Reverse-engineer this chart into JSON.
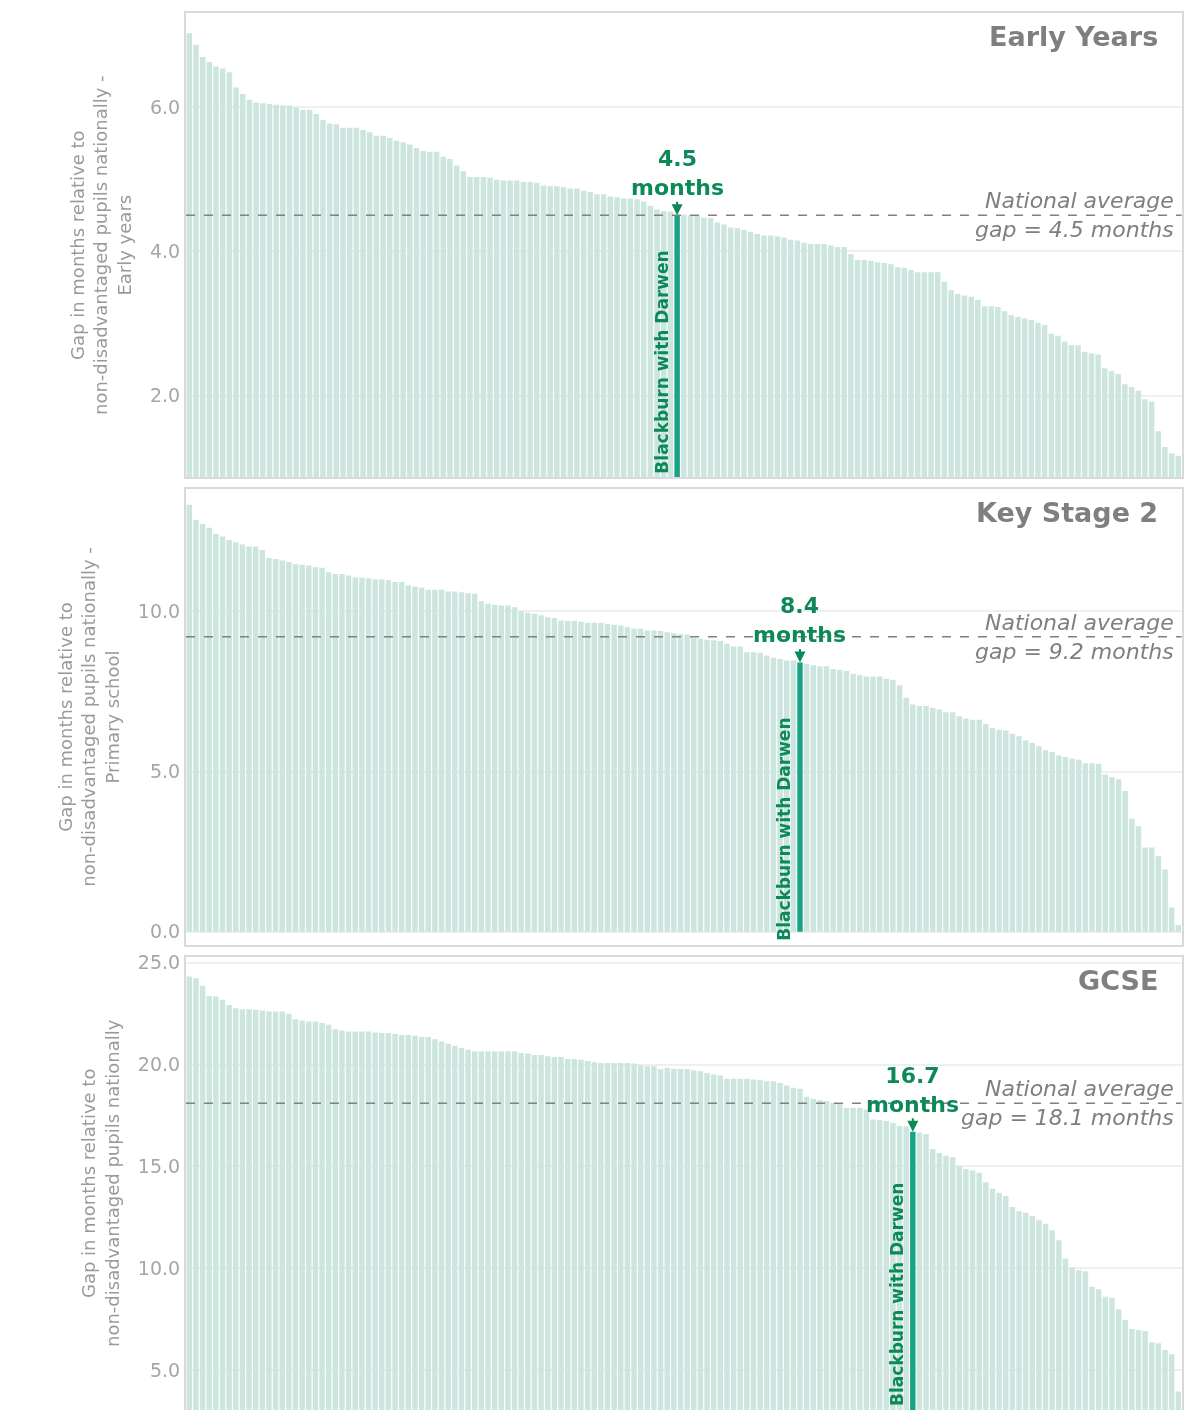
{
  "chart_data": [
    {
      "type": "bar",
      "title": "Early Years",
      "ylabel": "Gap in months relative to\nnon-disadvantaged pupils nationally -\nEarly years",
      "categories": [
        null,
        null,
        null,
        null,
        null,
        null,
        null,
        null,
        null,
        null,
        null,
        null,
        null,
        null,
        null,
        null,
        null,
        null,
        null,
        null,
        null,
        null,
        null,
        null,
        null,
        null,
        null,
        null,
        null,
        null,
        null,
        null,
        null,
        null,
        null,
        null,
        null,
        null,
        null,
        null,
        null,
        null,
        null,
        null,
        null,
        null,
        null,
        null,
        null,
        null,
        null,
        null,
        null,
        null,
        null,
        null,
        null,
        null,
        null,
        null,
        null,
        null,
        null,
        null,
        null,
        null,
        null,
        null,
        null,
        null,
        null,
        null,
        null,
        null,
        null,
        null,
        null,
        null,
        null,
        null,
        null,
        null,
        null,
        null,
        null,
        null,
        null,
        null,
        null,
        null,
        null,
        null,
        null,
        null,
        null,
        null,
        null,
        null,
        null,
        null,
        null,
        null,
        null,
        null,
        null,
        null,
        null,
        null,
        null,
        null,
        null,
        null,
        null,
        null,
        null,
        null,
        null,
        null,
        null,
        null,
        null,
        null,
        null,
        null,
        null,
        null,
        null,
        null,
        null,
        null,
        null,
        null,
        null,
        null,
        null,
        null,
        null,
        null,
        null,
        null,
        null,
        null,
        null,
        null,
        null,
        null,
        null,
        null,
        null
      ],
      "values": [
        7.02,
        6.86,
        6.69,
        6.62,
        6.56,
        6.53,
        6.48,
        6.27,
        6.18,
        6.1,
        6.06,
        6.05,
        6.04,
        6.03,
        6.02,
        6.02,
        5.99,
        5.96,
        5.96,
        5.9,
        5.82,
        5.77,
        5.76,
        5.71,
        5.71,
        5.71,
        5.68,
        5.65,
        5.6,
        5.6,
        5.57,
        5.53,
        5.51,
        5.48,
        5.43,
        5.39,
        5.38,
        5.38,
        5.31,
        5.28,
        5.19,
        5.11,
        5.03,
        5.03,
        5.03,
        5.02,
        4.99,
        4.98,
        4.98,
        4.98,
        4.96,
        4.96,
        4.95,
        4.91,
        4.9,
        4.9,
        4.89,
        4.87,
        4.87,
        4.84,
        4.82,
        4.79,
        4.79,
        4.76,
        4.75,
        4.73,
        4.73,
        4.72,
        4.69,
        4.63,
        4.58,
        4.56,
        4.55,
        4.5,
        4.51,
        4.5,
        4.49,
        4.47,
        4.46,
        4.4,
        4.37,
        4.33,
        4.32,
        4.3,
        4.27,
        4.24,
        4.22,
        4.22,
        4.21,
        4.19,
        4.16,
        4.15,
        4.12,
        4.1,
        4.1,
        4.1,
        4.08,
        4.06,
        4.06,
        3.96,
        3.88,
        3.88,
        3.87,
        3.85,
        3.84,
        3.82,
        3.78,
        3.77,
        3.74,
        3.71,
        3.71,
        3.71,
        3.71,
        3.58,
        3.46,
        3.41,
        3.39,
        3.37,
        3.33,
        3.24,
        3.24,
        3.23,
        3.17,
        3.12,
        3.09,
        3.07,
        3.05,
        3.01,
        2.98,
        2.86,
        2.83,
        2.75,
        2.7,
        2.7,
        2.61,
        2.59,
        2.57,
        2.38,
        2.34,
        2.3,
        2.16,
        2.12,
        2.07,
        1.95,
        1.92,
        1.51,
        1.29,
        1.2,
        1.17
      ],
      "colors": [
        "#cce5df",
        "#cce5df",
        "#cce5df",
        "#cce5df",
        "#cce5df",
        "#cce5df",
        "#cce5df",
        "#cce5df",
        "#cce5df",
        "#cce5df",
        "#cce5df",
        "#cce5df",
        "#cce5df",
        "#cce5df",
        "#cce5df",
        "#cce5df",
        "#cce5df",
        "#cce5df",
        "#cce5df",
        "#cce5df",
        "#cce5df",
        "#cce5df",
        "#cce5df",
        "#cce5df",
        "#cce5df",
        "#cce5df",
        "#cce5df",
        "#cce5df",
        "#cce5df",
        "#cce5df",
        "#cce5df",
        "#cce5df",
        "#cce5df",
        "#cce5df",
        "#cce5df",
        "#cce5df",
        "#cce5df",
        "#cce5df",
        "#cce5df",
        "#cce5df",
        "#cce5df",
        "#cce5df",
        "#cce5df",
        "#cce5df",
        "#cce5df",
        "#cce5df",
        "#cce5df",
        "#cce5df",
        "#cce5df",
        "#cce5df",
        "#cce5df",
        "#cce5df",
        "#cce5df",
        "#cce5df",
        "#cce5df",
        "#cce5df",
        "#cce5df",
        "#cce5df",
        "#cce5df",
        "#cce5df",
        "#cce5df",
        "#cce5df",
        "#cce5df",
        "#cce5df",
        "#cce5df",
        "#cce5df",
        "#cce5df",
        "#cce5df",
        "#cce5df",
        "#cce5df",
        "#cce5df",
        "#cce5df",
        "#cce5df",
        "#17a386",
        "#cce5df",
        "#cce5df",
        "#cce5df",
        "#cce5df",
        "#cce5df",
        "#cce5df",
        "#cce5df",
        "#cce5df",
        "#cce5df",
        "#cce5df",
        "#cce5df",
        "#cce5df",
        "#cce5df",
        "#cce5df",
        "#cce5df",
        "#cce5df",
        "#cce5df",
        "#cce5df",
        "#cce5df",
        "#cce5df",
        "#cce5df",
        "#cce5df",
        "#cce5df",
        "#cce5df",
        "#cce5df",
        "#cce5df",
        "#cce5df",
        "#cce5df",
        "#cce5df",
        "#cce5df",
        "#cce5df",
        "#cce5df",
        "#cce5df",
        "#cce5df",
        "#cce5df",
        "#cce5df",
        "#cce5df",
        "#cce5df",
        "#cce5df",
        "#cce5df",
        "#cce5df",
        "#cce5df",
        "#cce5df",
        "#cce5df",
        "#cce5df",
        "#cce5df",
        "#cce5df",
        "#cce5df",
        "#cce5df",
        "#cce5df",
        "#cce5df",
        "#cce5df",
        "#cce5df",
        "#cce5df",
        "#cce5df",
        "#cce5df",
        "#cce5df",
        "#cce5df",
        "#cce5df",
        "#cce5df",
        "#cce5df",
        "#cce5df",
        "#cce5df",
        "#cce5df",
        "#cce5df",
        "#cce5df",
        "#cce5df",
        "#cce5df",
        "#cce5df",
        "#cce5df",
        "#cce5df",
        "#cce5df",
        "#cce5df",
        "#cce5df",
        "#cce5df"
      ],
      "ylim": [
        0.87,
        7.3
      ],
      "yticks": [
        {
          "value": 2,
          "label": "2.0"
        },
        {
          "value": 4,
          "label": "4.0"
        },
        {
          "value": 6,
          "label": "6.0"
        }
      ],
      "grid": "y",
      "tick_labels": "y",
      "annotations": [
        {
          "text": "4.5\nmonths",
          "y": 4.5
        },
        "Blackburn with Darwen"
      ],
      "ref_lines": [
        {
          "axis": "y",
          "value": 4.5,
          "label": "National average\ngap = 4.5 months",
          "color": "#808080",
          "line_style": "dashed"
        }
      ]
    },
    {
      "type": "bar",
      "title": "Key Stage 2",
      "ylabel": "Gap in months relative to\nnon-disadvantaged pupils nationally -\nPrimary school",
      "categories": [
        null,
        null,
        null,
        null,
        null,
        null,
        null,
        null,
        null,
        null,
        null,
        null,
        null,
        null,
        null,
        null,
        null,
        null,
        null,
        null,
        null,
        null,
        null,
        null,
        null,
        null,
        null,
        null,
        null,
        null,
        null,
        null,
        null,
        null,
        null,
        null,
        null,
        null,
        null,
        null,
        null,
        null,
        null,
        null,
        null,
        null,
        null,
        null,
        null,
        null,
        null,
        null,
        null,
        null,
        null,
        null,
        null,
        null,
        null,
        null,
        null,
        null,
        null,
        null,
        null,
        null,
        null,
        null,
        null,
        null,
        null,
        null,
        null,
        null,
        null,
        null,
        null,
        null,
        null,
        null,
        null,
        null,
        null,
        null,
        null,
        null,
        null,
        null,
        null,
        null,
        null,
        null,
        null,
        null,
        null,
        null,
        null,
        null,
        null,
        null,
        null,
        null,
        null,
        null,
        null,
        null,
        null,
        null,
        null,
        null,
        null,
        null,
        null,
        null,
        null,
        null,
        null,
        null,
        null,
        null,
        null,
        null,
        null,
        null,
        null,
        null,
        null,
        null,
        null,
        null,
        null,
        null,
        null,
        null,
        null,
        null,
        null,
        null,
        null,
        null,
        null,
        null,
        null,
        null,
        null,
        null,
        null,
        null,
        null,
        null
      ],
      "values": [
        13.32,
        12.84,
        12.72,
        12.6,
        12.41,
        12.33,
        12.22,
        12.15,
        12.08,
        12.02,
        12.02,
        11.91,
        11.66,
        11.63,
        11.58,
        11.53,
        11.47,
        11.45,
        11.42,
        11.37,
        11.35,
        11.21,
        11.16,
        11.16,
        11.11,
        11.06,
        11.04,
        11.03,
        10.99,
        10.99,
        10.96,
        10.91,
        10.91,
        10.8,
        10.77,
        10.73,
        10.67,
        10.67,
        10.67,
        10.61,
        10.61,
        10.59,
        10.56,
        10.54,
        10.31,
        10.23,
        10.2,
        10.18,
        10.18,
        10.12,
        9.99,
        9.95,
        9.92,
        9.87,
        9.81,
        9.79,
        9.71,
        9.69,
        9.69,
        9.67,
        9.64,
        9.64,
        9.64,
        9.6,
        9.58,
        9.55,
        9.5,
        9.45,
        9.45,
        9.4,
        9.4,
        9.38,
        9.34,
        9.31,
        9.29,
        9.27,
        9.17,
        9.14,
        9.11,
        9.09,
        9.07,
        8.98,
        8.9,
        8.9,
        8.72,
        8.72,
        8.7,
        8.62,
        8.55,
        8.51,
        8.46,
        8.46,
        8.4,
        8.36,
        8.31,
        8.28,
        8.28,
        8.2,
        8.17,
        8.13,
        8.05,
        8.0,
        7.96,
        7.96,
        7.96,
        7.89,
        7.86,
        7.69,
        7.3,
        7.09,
        7.04,
        7.04,
        6.99,
        6.93,
        6.85,
        6.85,
        6.72,
        6.65,
        6.61,
        6.61,
        6.49,
        6.36,
        6.3,
        6.28,
        6.18,
        6.1,
        5.97,
        5.89,
        5.79,
        5.66,
        5.61,
        5.5,
        5.45,
        5.4,
        5.37,
        5.26,
        5.26,
        5.24,
        4.91,
        4.83,
        4.76,
        4.39,
        3.53,
        3.29,
        2.63,
        2.63,
        2.36,
        1.94,
        0.76,
        0.21
      ],
      "colors": [
        "#cce5df",
        "#cce5df",
        "#cce5df",
        "#cce5df",
        "#cce5df",
        "#cce5df",
        "#cce5df",
        "#cce5df",
        "#cce5df",
        "#cce5df",
        "#cce5df",
        "#cce5df",
        "#cce5df",
        "#cce5df",
        "#cce5df",
        "#cce5df",
        "#cce5df",
        "#cce5df",
        "#cce5df",
        "#cce5df",
        "#cce5df",
        "#cce5df",
        "#cce5df",
        "#cce5df",
        "#cce5df",
        "#cce5df",
        "#cce5df",
        "#cce5df",
        "#cce5df",
        "#cce5df",
        "#cce5df",
        "#cce5df",
        "#cce5df",
        "#cce5df",
        "#cce5df",
        "#cce5df",
        "#cce5df",
        "#cce5df",
        "#cce5df",
        "#cce5df",
        "#cce5df",
        "#cce5df",
        "#cce5df",
        "#cce5df",
        "#cce5df",
        "#cce5df",
        "#cce5df",
        "#cce5df",
        "#cce5df",
        "#cce5df",
        "#cce5df",
        "#cce5df",
        "#cce5df",
        "#cce5df",
        "#cce5df",
        "#cce5df",
        "#cce5df",
        "#cce5df",
        "#cce5df",
        "#cce5df",
        "#cce5df",
        "#cce5df",
        "#cce5df",
        "#cce5df",
        "#cce5df",
        "#cce5df",
        "#cce5df",
        "#cce5df",
        "#cce5df",
        "#cce5df",
        "#cce5df",
        "#cce5df",
        "#cce5df",
        "#cce5df",
        "#cce5df",
        "#cce5df",
        "#cce5df",
        "#cce5df",
        "#cce5df",
        "#cce5df",
        "#cce5df",
        "#cce5df",
        "#cce5df",
        "#cce5df",
        "#cce5df",
        "#cce5df",
        "#cce5df",
        "#cce5df",
        "#cce5df",
        "#cce5df",
        "#cce5df",
        "#cce5df",
        "#17a386",
        "#cce5df",
        "#cce5df",
        "#cce5df",
        "#cce5df",
        "#cce5df",
        "#cce5df",
        "#cce5df",
        "#cce5df",
        "#cce5df",
        "#cce5df",
        "#cce5df",
        "#cce5df",
        "#cce5df",
        "#cce5df",
        "#cce5df",
        "#cce5df",
        "#cce5df",
        "#cce5df",
        "#cce5df",
        "#cce5df",
        "#cce5df",
        "#cce5df",
        "#cce5df",
        "#cce5df",
        "#cce5df",
        "#cce5df",
        "#cce5df",
        "#cce5df",
        "#cce5df",
        "#cce5df",
        "#cce5df",
        "#cce5df",
        "#cce5df",
        "#cce5df",
        "#cce5df",
        "#cce5df",
        "#cce5df",
        "#cce5df",
        "#cce5df",
        "#cce5df",
        "#cce5df",
        "#cce5df",
        "#cce5df",
        "#cce5df",
        "#cce5df",
        "#cce5df",
        "#cce5df",
        "#cce5df",
        "#cce5df",
        "#cce5df",
        "#cce5df",
        "#cce5df",
        "#cce5df",
        "#cce5df",
        "#cce5df",
        "#cce5df",
        "#cce5df"
      ],
      "ylim": [
        -0.4,
        13.8
      ],
      "yticks": [
        {
          "value": 0,
          "label": "0.0"
        },
        {
          "value": 5,
          "label": "5.0"
        },
        {
          "value": 10,
          "label": "10.0"
        }
      ],
      "grid": "y",
      "tick_labels": "y",
      "annotations": [
        {
          "text": "8.4\nmonths",
          "y": 8.4
        },
        "Blackburn with Darwen"
      ],
      "ref_lines": [
        {
          "axis": "y",
          "value": 9.2,
          "label": "National average\ngap = 9.2 months",
          "color": "#808080",
          "line_style": "dashed"
        }
      ]
    },
    {
      "type": "bar",
      "title": "GCSE",
      "ylabel": "Gap in months relative to\nnon-disadvantaged pupils nationally",
      "categories": [
        null,
        null,
        null,
        null,
        null,
        null,
        null,
        null,
        null,
        null,
        null,
        null,
        null,
        null,
        null,
        null,
        null,
        null,
        null,
        null,
        null,
        null,
        null,
        null,
        null,
        null,
        null,
        null,
        null,
        null,
        null,
        null,
        null,
        null,
        null,
        null,
        null,
        null,
        null,
        null,
        null,
        null,
        null,
        null,
        null,
        null,
        null,
        null,
        null,
        null,
        null,
        null,
        null,
        null,
        null,
        null,
        null,
        null,
        null,
        null,
        null,
        null,
        null,
        null,
        null,
        null,
        null,
        null,
        null,
        null,
        null,
        null,
        null,
        null,
        null,
        null,
        null,
        null,
        null,
        null,
        null,
        null,
        null,
        null,
        null,
        null,
        null,
        null,
        null,
        null,
        null,
        null,
        null,
        null,
        null,
        null,
        null,
        null,
        null,
        null,
        null,
        null,
        null,
        null,
        null,
        null,
        null,
        null,
        null,
        null,
        null,
        null,
        null,
        null,
        null,
        null,
        null,
        null,
        null,
        null,
        null,
        null,
        null,
        null,
        null,
        null,
        null,
        null,
        null,
        null,
        null,
        null,
        null,
        null,
        null,
        null,
        null,
        null,
        null,
        null,
        null,
        null,
        null,
        null,
        null,
        null,
        null,
        null,
        null,
        null
      ],
      "values": [
        24.32,
        24.24,
        23.87,
        23.37,
        23.34,
        23.18,
        22.93,
        22.77,
        22.72,
        22.72,
        22.69,
        22.66,
        22.61,
        22.61,
        22.61,
        22.49,
        22.23,
        22.17,
        22.12,
        22.12,
        22.04,
        21.95,
        21.74,
        21.68,
        21.63,
        21.63,
        21.63,
        21.63,
        21.58,
        21.55,
        21.55,
        21.5,
        21.45,
        21.45,
        21.42,
        21.35,
        21.35,
        21.25,
        21.14,
        21.02,
        20.93,
        20.81,
        20.73,
        20.65,
        20.65,
        20.65,
        20.65,
        20.65,
        20.65,
        20.65,
        20.57,
        20.54,
        20.47,
        20.47,
        20.41,
        20.37,
        20.37,
        20.28,
        20.28,
        20.24,
        20.18,
        20.11,
        20.08,
        20.08,
        20.08,
        20.08,
        20.08,
        20.05,
        19.98,
        19.92,
        19.92,
        19.79,
        19.85,
        19.8,
        19.79,
        19.79,
        19.72,
        19.67,
        19.59,
        19.51,
        19.46,
        19.3,
        19.3,
        19.3,
        19.3,
        19.27,
        19.23,
        19.18,
        19.18,
        19.1,
        18.97,
        18.86,
        18.81,
        18.42,
        18.32,
        18.26,
        18.21,
        18.13,
        18.1,
        17.88,
        17.88,
        17.88,
        17.8,
        17.31,
        17.28,
        17.23,
        17.15,
        16.99,
        16.96,
        16.7,
        16.67,
        16.59,
        15.86,
        15.66,
        15.53,
        15.45,
        15.01,
        14.88,
        14.8,
        14.69,
        14.23,
        13.91,
        13.71,
        13.55,
        13.01,
        12.8,
        12.73,
        12.57,
        12.36,
        12.19,
        11.87,
        11.38,
        10.48,
        10.03,
        9.91,
        9.86,
        9.1,
        8.98,
        8.61,
        8.56,
        8.0,
        7.47,
        7.03,
        6.98,
        6.93,
        6.38,
        6.33,
        6.0,
        5.79,
        3.96
      ],
      "colors": [
        "#cce5df",
        "#cce5df",
        "#cce5df",
        "#cce5df",
        "#cce5df",
        "#cce5df",
        "#cce5df",
        "#cce5df",
        "#cce5df",
        "#cce5df",
        "#cce5df",
        "#cce5df",
        "#cce5df",
        "#cce5df",
        "#cce5df",
        "#cce5df",
        "#cce5df",
        "#cce5df",
        "#cce5df",
        "#cce5df",
        "#cce5df",
        "#cce5df",
        "#cce5df",
        "#cce5df",
        "#cce5df",
        "#cce5df",
        "#cce5df",
        "#cce5df",
        "#cce5df",
        "#cce5df",
        "#cce5df",
        "#cce5df",
        "#cce5df",
        "#cce5df",
        "#cce5df",
        "#cce5df",
        "#cce5df",
        "#cce5df",
        "#cce5df",
        "#cce5df",
        "#cce5df",
        "#cce5df",
        "#cce5df",
        "#cce5df",
        "#cce5df",
        "#cce5df",
        "#cce5df",
        "#cce5df",
        "#cce5df",
        "#cce5df",
        "#cce5df",
        "#cce5df",
        "#cce5df",
        "#cce5df",
        "#cce5df",
        "#cce5df",
        "#cce5df",
        "#cce5df",
        "#cce5df",
        "#cce5df",
        "#cce5df",
        "#cce5df",
        "#cce5df",
        "#cce5df",
        "#cce5df",
        "#cce5df",
        "#cce5df",
        "#cce5df",
        "#cce5df",
        "#cce5df",
        "#cce5df",
        "#cce5df",
        "#cce5df",
        "#cce5df",
        "#cce5df",
        "#cce5df",
        "#cce5df",
        "#cce5df",
        "#cce5df",
        "#cce5df",
        "#cce5df",
        "#cce5df",
        "#cce5df",
        "#cce5df",
        "#cce5df",
        "#cce5df",
        "#cce5df",
        "#cce5df",
        "#cce5df",
        "#cce5df",
        "#cce5df",
        "#cce5df",
        "#cce5df",
        "#cce5df",
        "#cce5df",
        "#cce5df",
        "#cce5df",
        "#cce5df",
        "#cce5df",
        "#cce5df",
        "#cce5df",
        "#cce5df",
        "#cce5df",
        "#cce5df",
        "#cce5df",
        "#cce5df",
        "#cce5df",
        "#cce5df",
        "#cce5df",
        "#17a386",
        "#cce5df",
        "#cce5df",
        "#cce5df",
        "#cce5df",
        "#cce5df",
        "#cce5df",
        "#cce5df",
        "#cce5df",
        "#cce5df",
        "#cce5df",
        "#cce5df",
        "#cce5df",
        "#cce5df",
        "#cce5df",
        "#cce5df",
        "#cce5df",
        "#cce5df",
        "#cce5df",
        "#cce5df",
        "#cce5df",
        "#cce5df",
        "#cce5df",
        "#cce5df",
        "#cce5df",
        "#cce5df",
        "#cce5df",
        "#cce5df",
        "#cce5df",
        "#cce5df",
        "#cce5df",
        "#cce5df",
        "#cce5df",
        "#cce5df",
        "#cce5df",
        "#cce5df",
        "#cce5df",
        "#cce5df",
        "#cce5df",
        "#cce5df",
        "#cce5df"
      ],
      "ylim": [
        3.05,
        25.3
      ],
      "yticks": [
        {
          "value": 5,
          "label": "5.0"
        },
        {
          "value": 10,
          "label": "10.0"
        },
        {
          "value": 15,
          "label": "15.0"
        },
        {
          "value": 20,
          "label": "20.0"
        },
        {
          "value": 25,
          "label": "25.0"
        }
      ],
      "grid": "y",
      "tick_labels": "y",
      "annotations": [
        {
          "text": "16.7\nmonths",
          "y": 16.7
        },
        "Blackburn with Darwen"
      ],
      "ref_lines": [
        {
          "axis": "y",
          "value": 18.1,
          "label": "National average\ngap = 18.1 months",
          "color": "#808080",
          "line_style": "dashed"
        }
      ]
    }
  ]
}
